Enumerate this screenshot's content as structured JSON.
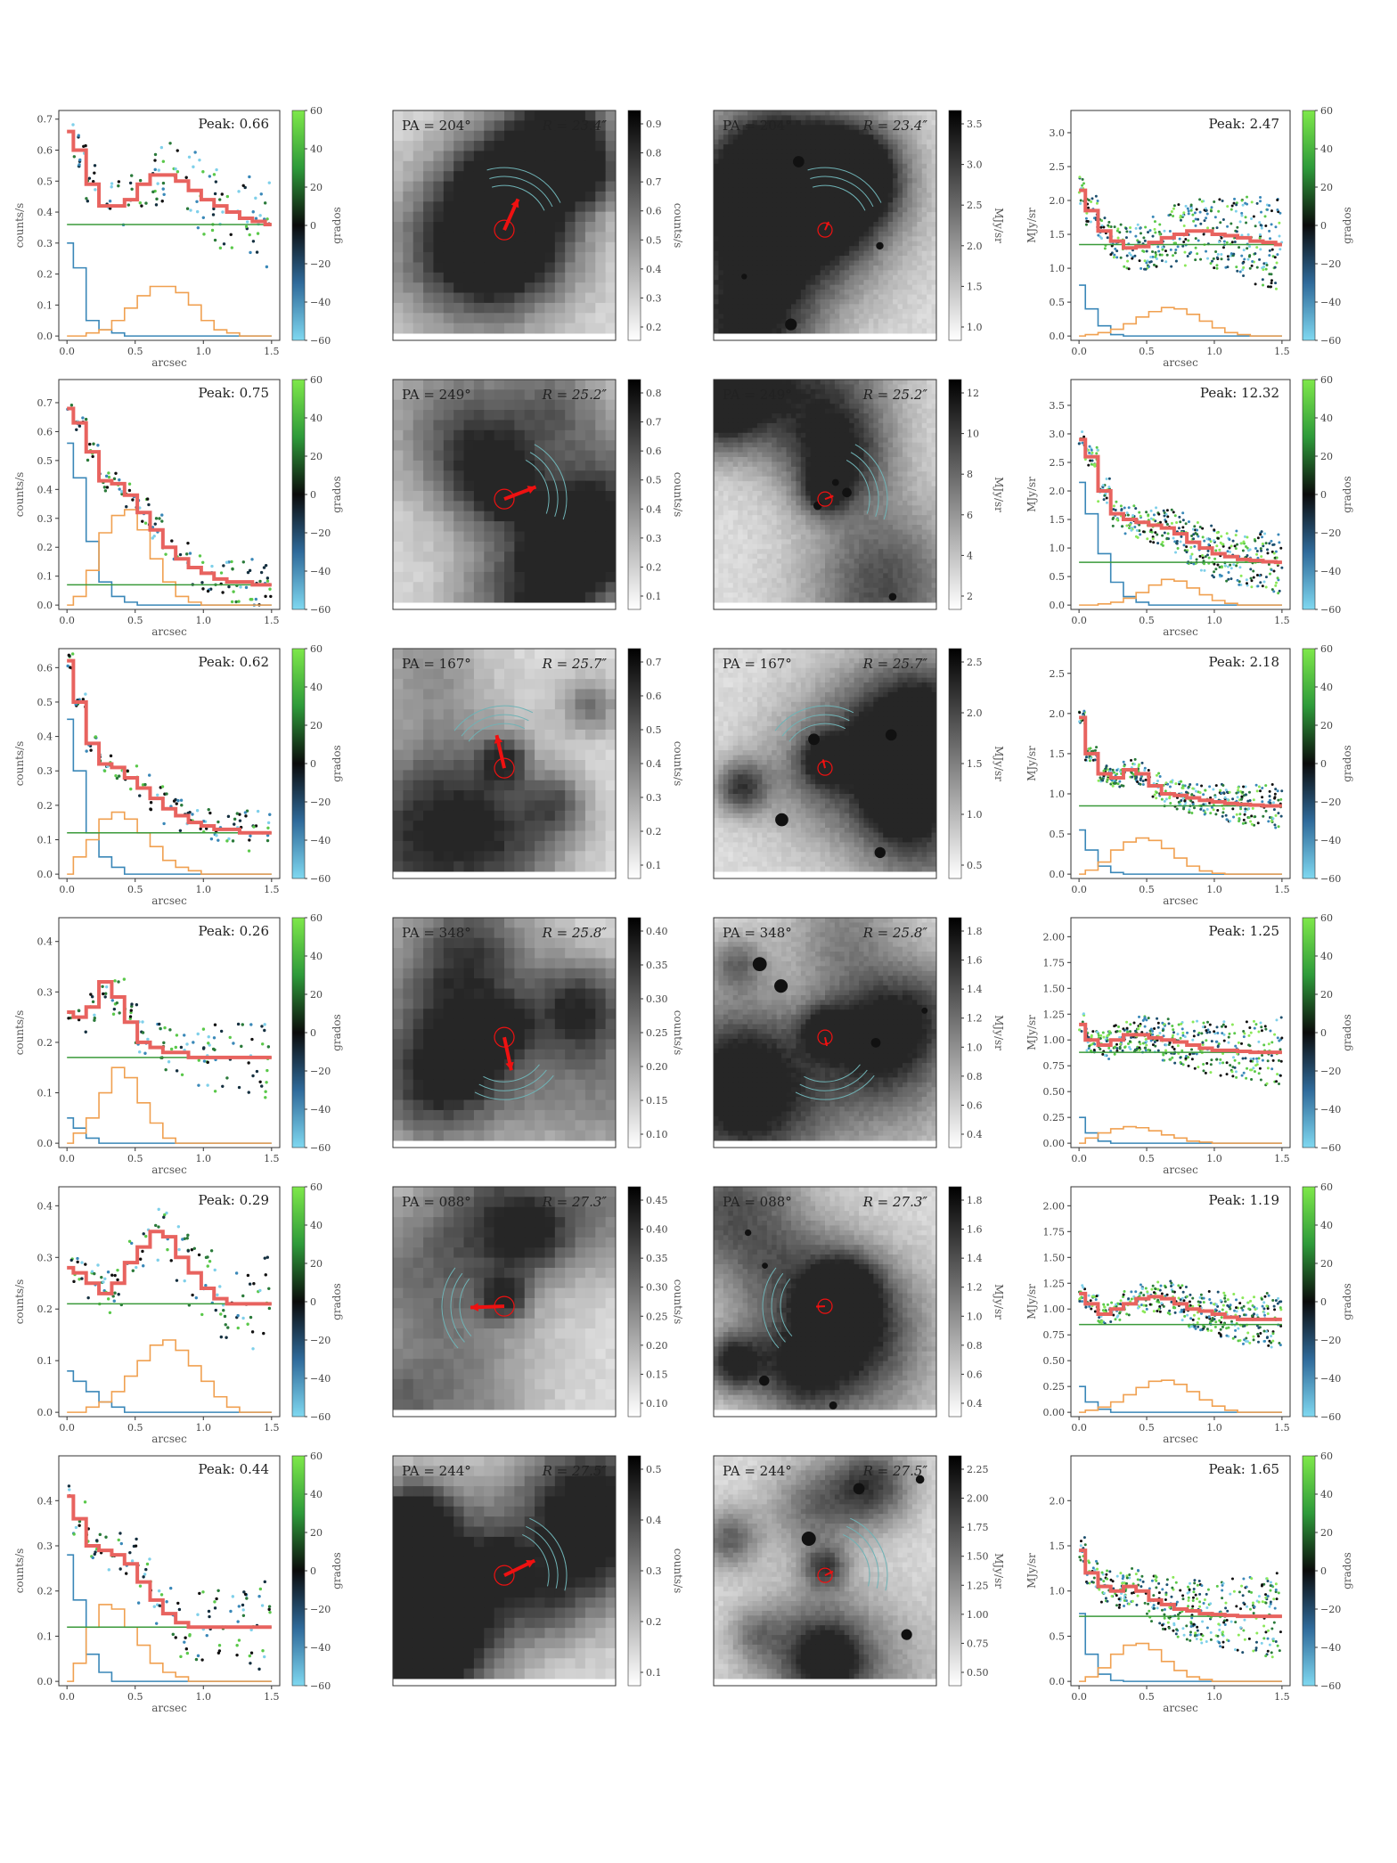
{
  "figure": {
    "profile_x_label": "arcsec",
    "profile_x_ticks": [
      "0.0",
      "0.5",
      "1.0",
      "1.5"
    ],
    "profile_colorbar_label": "grados",
    "profile_colorbar_ticks": [
      "60",
      "40",
      "20",
      "0",
      "−20",
      "−40",
      "−60"
    ],
    "image_colorbar_unit_left": "counts/s",
    "image_colorbar_unit_right": "MJy/sr",
    "colors": {
      "fit_line": "#e8635f",
      "baseline": "#3a9a3a",
      "blue_hist": "#3a87b8",
      "orange_hist": "#f0a050",
      "marker_red": "#ee1111",
      "arc": "#6fb3b6"
    }
  },
  "rows": [
    {
      "pa": "PA = 204°",
      "r": "R = 23.4″",
      "left": {
        "peak": "Peak: 0.66",
        "ylabel": "counts/s",
        "yticks": [
          "0.0",
          "0.1",
          "0.2",
          "0.3",
          "0.4",
          "0.5",
          "0.6",
          "0.7"
        ],
        "ymax": 0.7,
        "baseline": 0.36,
        "fit": [
          0.66,
          0.6,
          0.49,
          0.42,
          0.42,
          0.44,
          0.49,
          0.52,
          0.52,
          0.5,
          0.47,
          0.44,
          0.42,
          0.4,
          0.38,
          0.37,
          0.36
        ],
        "blue": [
          0.3,
          0.22,
          0.05,
          0.02,
          0.01,
          0.0,
          0.0,
          0.0,
          0.0,
          0.0,
          0.0,
          0.0,
          0.0,
          0.0,
          0.0,
          0.0,
          0.0
        ],
        "orange": [
          0.0,
          0.0,
          0.01,
          0.02,
          0.05,
          0.09,
          0.13,
          0.16,
          0.16,
          0.14,
          0.1,
          0.05,
          0.02,
          0.01,
          0.0,
          0.0,
          0.0
        ],
        "spread": 0.12
      },
      "mid": {
        "cbar_ticks": [
          "0.2",
          "0.3",
          "0.4",
          "0.5",
          "0.6",
          "0.7",
          "0.8",
          "0.9"
        ],
        "unit": "counts/s",
        "arrow_angle": 204,
        "seed": 11
      },
      "right_img": {
        "cbar_ticks": [
          "1.0",
          "1.5",
          "2.0",
          "2.5",
          "3.0",
          "3.5"
        ],
        "unit": "MJy/sr",
        "seed": 21
      },
      "right": {
        "peak": "Peak: 2.47",
        "ylabel": "MJy/sr",
        "yticks": [
          "0.0",
          "0.5",
          "1.0",
          "1.5",
          "2.0",
          "2.5",
          "3.0"
        ],
        "ymax": 3.2,
        "baseline": 1.35,
        "fit": [
          2.15,
          1.85,
          1.55,
          1.4,
          1.3,
          1.32,
          1.38,
          1.45,
          1.5,
          1.55,
          1.55,
          1.5,
          1.48,
          1.45,
          1.4,
          1.38,
          1.35
        ],
        "blue": [
          0.75,
          0.4,
          0.15,
          0.02,
          0.0,
          0.0,
          0.0,
          0.0,
          0.0,
          0.0,
          0.0,
          0.0,
          0.0,
          0.0,
          0.0,
          0.0,
          0.0
        ],
        "orange": [
          0.0,
          0.02,
          0.05,
          0.1,
          0.18,
          0.28,
          0.36,
          0.42,
          0.4,
          0.32,
          0.22,
          0.12,
          0.05,
          0.02,
          0.0,
          0.0,
          0.0
        ],
        "spread": 0.5
      }
    },
    {
      "pa": "PA = 249°",
      "r": "R = 25.2″",
      "left": {
        "peak": "Peak: 0.75",
        "ylabel": "counts/s",
        "yticks": [
          "0.0",
          "0.1",
          "0.2",
          "0.3",
          "0.4",
          "0.5",
          "0.6",
          "0.7"
        ],
        "ymax": 0.75,
        "baseline": 0.07,
        "fit": [
          0.68,
          0.63,
          0.53,
          0.43,
          0.42,
          0.38,
          0.32,
          0.26,
          0.2,
          0.16,
          0.13,
          0.11,
          0.09,
          0.08,
          0.08,
          0.07,
          0.07
        ],
        "blue": [
          0.56,
          0.44,
          0.22,
          0.08,
          0.03,
          0.01,
          0.0,
          0.0,
          0.0,
          0.0,
          0.0,
          0.0,
          0.0,
          0.0,
          0.0,
          0.0,
          0.0
        ],
        "orange": [
          0.0,
          0.03,
          0.12,
          0.25,
          0.31,
          0.33,
          0.26,
          0.16,
          0.08,
          0.03,
          0.01,
          0.0,
          0.0,
          0.0,
          0.0,
          0.0,
          0.0
        ],
        "spread": 0.06
      },
      "mid": {
        "cbar_ticks": [
          "0.1",
          "0.2",
          "0.3",
          "0.4",
          "0.5",
          "0.6",
          "0.7",
          "0.8"
        ],
        "unit": "counts/s",
        "arrow_angle": 249,
        "seed": 12
      },
      "right_img": {
        "cbar_ticks": [
          "2",
          "4",
          "6",
          "8",
          "10",
          "12"
        ],
        "unit": "MJy/sr",
        "seed": 22
      },
      "right": {
        "peak": "Peak: 12.32",
        "ylabel": "MJy/sr",
        "yticks": [
          "0.0",
          "0.5",
          "1.0",
          "1.5",
          "2.0",
          "2.5",
          "3.0",
          "3.5"
        ],
        "ymax": 3.8,
        "baseline": 0.75,
        "fit": [
          2.9,
          2.6,
          2.0,
          1.6,
          1.5,
          1.45,
          1.4,
          1.35,
          1.25,
          1.1,
          1.0,
          0.9,
          0.85,
          0.8,
          0.78,
          0.76,
          0.75
        ],
        "blue": [
          2.15,
          1.6,
          0.9,
          0.4,
          0.15,
          0.05,
          0.0,
          0.0,
          0.0,
          0.0,
          0.0,
          0.0,
          0.0,
          0.0,
          0.0,
          0.0,
          0.0
        ],
        "orange": [
          0.0,
          0.0,
          0.02,
          0.05,
          0.12,
          0.22,
          0.35,
          0.45,
          0.42,
          0.3,
          0.18,
          0.08,
          0.03,
          0.0,
          0.0,
          0.0,
          0.0
        ],
        "spread": 0.4
      }
    },
    {
      "pa": "PA = 167°",
      "r": "R = 25.7″",
      "left": {
        "peak": "Peak: 0.62",
        "ylabel": "counts/s",
        "yticks": [
          "0.0",
          "0.1",
          "0.2",
          "0.3",
          "0.4",
          "0.5",
          "0.6"
        ],
        "ymax": 0.63,
        "baseline": 0.12,
        "fit": [
          0.62,
          0.5,
          0.38,
          0.32,
          0.31,
          0.28,
          0.25,
          0.22,
          0.19,
          0.17,
          0.15,
          0.14,
          0.13,
          0.13,
          0.12,
          0.12,
          0.12
        ],
        "blue": [
          0.45,
          0.3,
          0.12,
          0.05,
          0.02,
          0.0,
          0.0,
          0.0,
          0.0,
          0.0,
          0.0,
          0.0,
          0.0,
          0.0,
          0.0,
          0.0,
          0.0
        ],
        "orange": [
          0.0,
          0.05,
          0.1,
          0.16,
          0.18,
          0.16,
          0.12,
          0.08,
          0.04,
          0.02,
          0.01,
          0.0,
          0.0,
          0.0,
          0.0,
          0.0,
          0.0
        ],
        "spread": 0.05
      },
      "mid": {
        "cbar_ticks": [
          "0.1",
          "0.2",
          "0.3",
          "0.4",
          "0.5",
          "0.6",
          "0.7"
        ],
        "unit": "counts/s",
        "arrow_angle": 167,
        "seed": 13
      },
      "right_img": {
        "cbar_ticks": [
          "0.5",
          "1.0",
          "1.5",
          "2.0",
          "2.5"
        ],
        "unit": "MJy/sr",
        "seed": 23
      },
      "right": {
        "peak": "Peak: 2.18",
        "ylabel": "MJy/sr",
        "yticks": [
          "0.0",
          "0.5",
          "1.0",
          "1.5",
          "2.0",
          "2.5"
        ],
        "ymax": 2.7,
        "baseline": 0.85,
        "fit": [
          1.95,
          1.5,
          1.25,
          1.2,
          1.3,
          1.25,
          1.1,
          1.0,
          0.98,
          0.95,
          0.92,
          0.9,
          0.88,
          0.87,
          0.86,
          0.85,
          0.85
        ],
        "blue": [
          0.55,
          0.3,
          0.1,
          0.02,
          0.0,
          0.0,
          0.0,
          0.0,
          0.0,
          0.0,
          0.0,
          0.0,
          0.0,
          0.0,
          0.0,
          0.0,
          0.0
        ],
        "orange": [
          0.0,
          0.05,
          0.15,
          0.3,
          0.4,
          0.45,
          0.42,
          0.32,
          0.2,
          0.1,
          0.04,
          0.01,
          0.0,
          0.0,
          0.0,
          0.0,
          0.0
        ],
        "spread": 0.2
      }
    },
    {
      "pa": "PA = 348°",
      "r": "R = 25.8″",
      "left": {
        "peak": "Peak: 0.26",
        "ylabel": "counts/s",
        "yticks": [
          "0.0",
          "0.1",
          "0.2",
          "0.3",
          "0.4"
        ],
        "ymax": 0.43,
        "baseline": 0.17,
        "fit": [
          0.26,
          0.25,
          0.27,
          0.32,
          0.29,
          0.24,
          0.2,
          0.19,
          0.18,
          0.18,
          0.17,
          0.17,
          0.17,
          0.17,
          0.17,
          0.17,
          0.17
        ],
        "blue": [
          0.05,
          0.03,
          0.01,
          0.0,
          0.0,
          0.0,
          0.0,
          0.0,
          0.0,
          0.0,
          0.0,
          0.0,
          0.0,
          0.0,
          0.0,
          0.0,
          0.0
        ],
        "orange": [
          0.0,
          0.02,
          0.05,
          0.1,
          0.15,
          0.13,
          0.08,
          0.04,
          0.01,
          0.0,
          0.0,
          0.0,
          0.0,
          0.0,
          0.0,
          0.0,
          0.0
        ],
        "spread": 0.06
      },
      "mid": {
        "cbar_ticks": [
          "0.10",
          "0.15",
          "0.20",
          "0.25",
          "0.30",
          "0.35",
          "0.40"
        ],
        "unit": "counts/s",
        "arrow_angle": 348,
        "seed": 14
      },
      "right_img": {
        "cbar_ticks": [
          "0.4",
          "0.6",
          "0.8",
          "1.0",
          "1.2",
          "1.4",
          "1.6",
          "1.8"
        ],
        "unit": "MJy/sr",
        "seed": 24
      },
      "right": {
        "peak": "Peak: 1.25",
        "ylabel": "MJy/sr",
        "yticks": [
          "0.00",
          "0.25",
          "0.50",
          "0.75",
          "1.00",
          "1.25",
          "1.50",
          "1.75",
          "2.00"
        ],
        "ymax": 2.1,
        "baseline": 0.88,
        "fit": [
          1.15,
          1.0,
          0.95,
          1.0,
          1.05,
          1.05,
          1.02,
          1.0,
          0.98,
          0.95,
          0.92,
          0.9,
          0.9,
          0.89,
          0.88,
          0.88,
          0.88
        ],
        "blue": [
          0.25,
          0.1,
          0.02,
          0.0,
          0.0,
          0.0,
          0.0,
          0.0,
          0.0,
          0.0,
          0.0,
          0.0,
          0.0,
          0.0,
          0.0,
          0.0,
          0.0
        ],
        "orange": [
          0.0,
          0.05,
          0.1,
          0.14,
          0.16,
          0.15,
          0.12,
          0.08,
          0.05,
          0.02,
          0.01,
          0.0,
          0.0,
          0.0,
          0.0,
          0.0,
          0.0
        ],
        "spread": 0.25
      }
    },
    {
      "pa": "PA = 088°",
      "r": "R = 27.3″",
      "left": {
        "peak": "Peak: 0.29",
        "ylabel": "counts/s",
        "yticks": [
          "0.0",
          "0.1",
          "0.2",
          "0.3",
          "0.4"
        ],
        "ymax": 0.42,
        "baseline": 0.21,
        "fit": [
          0.28,
          0.27,
          0.25,
          0.23,
          0.25,
          0.29,
          0.32,
          0.35,
          0.34,
          0.3,
          0.27,
          0.24,
          0.22,
          0.21,
          0.21,
          0.21,
          0.21
        ],
        "blue": [
          0.08,
          0.06,
          0.04,
          0.02,
          0.01,
          0.0,
          0.0,
          0.0,
          0.0,
          0.0,
          0.0,
          0.0,
          0.0,
          0.0,
          0.0,
          0.0,
          0.0
        ],
        "orange": [
          0.0,
          0.0,
          0.01,
          0.02,
          0.04,
          0.07,
          0.1,
          0.13,
          0.14,
          0.12,
          0.09,
          0.06,
          0.03,
          0.01,
          0.0,
          0.0,
          0.0
        ],
        "spread": 0.07
      },
      "mid": {
        "cbar_ticks": [
          "0.10",
          "0.15",
          "0.20",
          "0.25",
          "0.30",
          "0.35",
          "0.40",
          "0.45"
        ],
        "unit": "counts/s",
        "arrow_angle": 88,
        "seed": 15
      },
      "right_img": {
        "cbar_ticks": [
          "0.4",
          "0.6",
          "0.8",
          "1.0",
          "1.2",
          "1.4",
          "1.6",
          "1.8"
        ],
        "unit": "MJy/sr",
        "seed": 25
      },
      "right": {
        "peak": "Peak: 1.19",
        "ylabel": "MJy/sr",
        "yticks": [
          "0.00",
          "0.25",
          "0.50",
          "0.75",
          "1.00",
          "1.25",
          "1.50",
          "1.75",
          "2.00"
        ],
        "ymax": 2.1,
        "baseline": 0.85,
        "fit": [
          1.15,
          1.05,
          0.95,
          1.0,
          1.05,
          1.1,
          1.12,
          1.1,
          1.05,
          1.0,
          0.98,
          0.95,
          0.92,
          0.9,
          0.9,
          0.9,
          0.9
        ],
        "blue": [
          0.25,
          0.1,
          0.03,
          0.0,
          0.0,
          0.0,
          0.0,
          0.0,
          0.0,
          0.0,
          0.0,
          0.0,
          0.0,
          0.0,
          0.0,
          0.0,
          0.0
        ],
        "orange": [
          0.0,
          0.02,
          0.05,
          0.1,
          0.17,
          0.24,
          0.3,
          0.31,
          0.27,
          0.2,
          0.12,
          0.06,
          0.02,
          0.0,
          0.0,
          0.0,
          0.0
        ],
        "spread": 0.2
      }
    },
    {
      "pa": "PA = 244°",
      "r": "R = 27.5″",
      "left": {
        "peak": "Peak: 0.44",
        "ylabel": "counts/s",
        "yticks": [
          "0.0",
          "0.1",
          "0.2",
          "0.3",
          "0.4"
        ],
        "ymax": 0.48,
        "baseline": 0.12,
        "fit": [
          0.41,
          0.36,
          0.3,
          0.29,
          0.28,
          0.26,
          0.22,
          0.18,
          0.15,
          0.13,
          0.12,
          0.12,
          0.12,
          0.12,
          0.12,
          0.12,
          0.12
        ],
        "blue": [
          0.28,
          0.18,
          0.06,
          0.02,
          0.0,
          0.0,
          0.0,
          0.0,
          0.0,
          0.0,
          0.0,
          0.0,
          0.0,
          0.0,
          0.0,
          0.0,
          0.0
        ],
        "orange": [
          0.0,
          0.04,
          0.12,
          0.17,
          0.16,
          0.12,
          0.08,
          0.04,
          0.02,
          0.01,
          0.0,
          0.0,
          0.0,
          0.0,
          0.0,
          0.0,
          0.0
        ],
        "spread": 0.08
      },
      "mid": {
        "cbar_ticks": [
          "0.1",
          "0.2",
          "0.3",
          "0.4",
          "0.5"
        ],
        "unit": "counts/s",
        "arrow_angle": 244,
        "seed": 16
      },
      "right_img": {
        "cbar_ticks": [
          "0.50",
          "0.75",
          "1.00",
          "1.25",
          "1.50",
          "1.75",
          "2.00",
          "2.25"
        ],
        "unit": "MJy/sr",
        "seed": 26
      },
      "right": {
        "peak": "Peak: 1.65",
        "ylabel": "MJy/sr",
        "yticks": [
          "0.0",
          "0.5",
          "1.0",
          "1.5",
          "2.0"
        ],
        "ymax": 2.4,
        "baseline": 0.72,
        "fit": [
          1.45,
          1.2,
          1.05,
          1.0,
          1.05,
          1.0,
          0.9,
          0.85,
          0.8,
          0.78,
          0.75,
          0.74,
          0.73,
          0.72,
          0.72,
          0.72,
          0.72
        ],
        "blue": [
          0.75,
          0.3,
          0.08,
          0.01,
          0.0,
          0.0,
          0.0,
          0.0,
          0.0,
          0.0,
          0.0,
          0.0,
          0.0,
          0.0,
          0.0,
          0.0,
          0.0
        ],
        "orange": [
          0.0,
          0.05,
          0.15,
          0.3,
          0.4,
          0.42,
          0.35,
          0.22,
          0.12,
          0.05,
          0.02,
          0.0,
          0.0,
          0.0,
          0.0,
          0.0,
          0.0
        ],
        "spread": 0.35
      }
    }
  ]
}
